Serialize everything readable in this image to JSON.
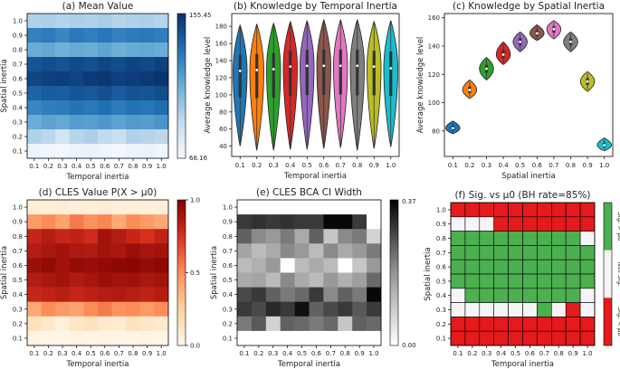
{
  "chart_data": [
    {
      "type": "heatmap",
      "title": "(a) Mean Value",
      "xlabel": "Temporal inertia",
      "ylabel": "Spatial inertia",
      "x_ticks": [
        "0.1",
        "0.2",
        "0.3",
        "0.4",
        "0.5",
        "0.6",
        "0.7",
        "0.8",
        "0.9",
        "1.0"
      ],
      "y_ticks": [
        "1.0",
        "0.9",
        "0.8",
        "0.7",
        "0.6",
        "0.5",
        "0.4",
        "0.3",
        "0.2",
        "0.1"
      ],
      "colorbar": {
        "min": 68.16,
        "max": 155.45,
        "min_label": "68.16",
        "max_label": "155.45",
        "colormap": "Blues"
      },
      "rows_top_to_bottom": [
        [
          95,
          96,
          94,
          96,
          95,
          97,
          94,
          95,
          96,
          94
        ],
        [
          128,
          130,
          126,
          131,
          129,
          132,
          128,
          130,
          131,
          129
        ],
        [
          112,
          114,
          110,
          113,
          112,
          115,
          111,
          113,
          114,
          112
        ],
        [
          143,
          146,
          144,
          147,
          145,
          148,
          146,
          149,
          147,
          150
        ],
        [
          148,
          150,
          151,
          149,
          152,
          153,
          150,
          151,
          152,
          154
        ],
        [
          138,
          141,
          140,
          143,
          142,
          145,
          141,
          144,
          143,
          146
        ],
        [
          126,
          129,
          130,
          133,
          131,
          134,
          130,
          133,
          132,
          135
        ],
        [
          112,
          116,
          114,
          118,
          117,
          120,
          116,
          119,
          118,
          121
        ],
        [
          95,
          92,
          84,
          93,
          96,
          91,
          88,
          95,
          94,
          92
        ],
        [
          73,
          72,
          71,
          73,
          74,
          72,
          71,
          73,
          74,
          72
        ]
      ]
    },
    {
      "type": "violin",
      "title": "(b) Knowledge by Temporal Inertia",
      "xlabel": "Temporal inertia",
      "ylabel": "Average knowledge level",
      "categories": [
        "0.1",
        "0.2",
        "0.3",
        "0.4",
        "0.5",
        "0.6",
        "0.7",
        "0.8",
        "0.9",
        "1.0"
      ],
      "ylim": [
        28,
        195
      ],
      "y_ticks": [
        40,
        60,
        80,
        100,
        120,
        140,
        160,
        180
      ],
      "series": [
        {
          "name": "0.1",
          "min": 40,
          "max": 182,
          "median": 128,
          "color": "#1f77b4"
        },
        {
          "name": "0.2",
          "min": 35,
          "max": 183,
          "median": 129,
          "color": "#ff7f0e"
        },
        {
          "name": "0.3",
          "min": 35,
          "max": 184,
          "median": 130,
          "color": "#2ca02c"
        },
        {
          "name": "0.4",
          "min": 36,
          "max": 186,
          "median": 133,
          "color": "#d62728"
        },
        {
          "name": "0.5",
          "min": 36,
          "max": 187,
          "median": 134,
          "color": "#9467bd"
        },
        {
          "name": "0.6",
          "min": 37,
          "max": 188,
          "median": 134,
          "color": "#8c564b"
        },
        {
          "name": "0.7",
          "min": 38,
          "max": 188,
          "median": 134,
          "color": "#e377c2"
        },
        {
          "name": "0.8",
          "min": 35,
          "max": 188,
          "median": 134,
          "color": "#7f7f7f"
        },
        {
          "name": "0.9",
          "min": 37,
          "max": 186,
          "median": 133,
          "color": "#bcbd22"
        },
        {
          "name": "1.0",
          "min": 39,
          "max": 187,
          "median": 131,
          "color": "#17becf"
        }
      ]
    },
    {
      "type": "violin",
      "title": "(c) Knowledge by Spatial Inertia",
      "xlabel": "Spatial inertia",
      "ylabel": "Average knowledge level",
      "categories": [
        "0.1",
        "0.2",
        "0.3",
        "0.4",
        "0.5",
        "0.6",
        "0.7",
        "0.8",
        "0.9",
        "1.0"
      ],
      "ylim": [
        62,
        163
      ],
      "y_ticks": [
        80,
        100,
        120,
        140,
        160
      ],
      "series": [
        {
          "name": "0.1",
          "min": 78,
          "max": 87,
          "median": 82,
          "color": "#1f77b4"
        },
        {
          "name": "0.2",
          "min": 103,
          "max": 116,
          "median": 109,
          "color": "#ff7f0e"
        },
        {
          "name": "0.3",
          "min": 116,
          "max": 132,
          "median": 124,
          "color": "#2ca02c"
        },
        {
          "name": "0.4",
          "min": 127,
          "max": 143,
          "median": 134,
          "color": "#d62728"
        },
        {
          "name": "0.5",
          "min": 136,
          "max": 150,
          "median": 143,
          "color": "#9467bd"
        },
        {
          "name": "0.6",
          "min": 144,
          "max": 155,
          "median": 149,
          "color": "#8c564b"
        },
        {
          "name": "0.7",
          "min": 145,
          "max": 158,
          "median": 152,
          "color": "#e377c2"
        },
        {
          "name": "0.8",
          "min": 136,
          "max": 150,
          "median": 143,
          "color": "#7f7f7f"
        },
        {
          "name": "0.9",
          "min": 108,
          "max": 122,
          "median": 115,
          "color": "#bcbd22"
        },
        {
          "name": "1.0",
          "min": 66,
          "max": 75,
          "median": 70,
          "color": "#17becf"
        }
      ]
    },
    {
      "type": "heatmap",
      "title": "(d) CLES Value P(X > μ0)",
      "xlabel": "Temporal inertia",
      "ylabel": "Spatial inertia",
      "x_ticks": [
        "0.1",
        "0.2",
        "0.3",
        "0.4",
        "0.5",
        "0.6",
        "0.7",
        "0.8",
        "0.9",
        "1.0"
      ],
      "y_ticks": [
        "1.0",
        "0.9",
        "0.8",
        "0.7",
        "0.6",
        "0.5",
        "0.4",
        "0.3",
        "0.2",
        "0.1"
      ],
      "colorbar": {
        "min": 0,
        "max": 1,
        "ticks": [
          "0.0",
          "0.5",
          "1.0"
        ],
        "colormap": "OrRd"
      },
      "rows_top_to_bottom": [
        [
          0.06,
          0.05,
          0.07,
          0.05,
          0.06,
          0.07,
          0.05,
          0.06,
          0.05,
          0.06
        ],
        [
          0.45,
          0.5,
          0.42,
          0.55,
          0.48,
          0.52,
          0.4,
          0.5,
          0.45,
          0.4
        ],
        [
          0.8,
          0.85,
          0.8,
          0.82,
          0.78,
          0.9,
          0.85,
          0.8,
          0.75,
          0.82
        ],
        [
          0.85,
          0.88,
          0.9,
          0.87,
          0.86,
          0.9,
          0.88,
          0.92,
          0.89,
          0.9
        ],
        [
          0.92,
          0.95,
          0.9,
          0.94,
          0.93,
          0.95,
          0.96,
          0.97,
          0.94,
          0.96
        ],
        [
          0.85,
          0.88,
          0.9,
          0.86,
          0.89,
          0.92,
          0.9,
          0.91,
          0.88,
          0.9
        ],
        [
          0.8,
          0.82,
          0.84,
          0.8,
          0.83,
          0.85,
          0.86,
          0.84,
          0.82,
          0.85
        ],
        [
          0.4,
          0.5,
          0.45,
          0.42,
          0.5,
          0.55,
          0.48,
          0.5,
          0.45,
          0.5
        ],
        [
          0.15,
          0.1,
          0.05,
          0.12,
          0.15,
          0.1,
          0.08,
          0.15,
          0.12,
          0.1
        ],
        [
          0.03,
          0.02,
          0.02,
          0.03,
          0.02,
          0.03,
          0.02,
          0.02,
          0.03,
          0.02
        ]
      ]
    },
    {
      "type": "heatmap",
      "title": "(e) CLES BCA CI Width",
      "xlabel": "Temporal inertia",
      "ylabel": "Spatial inertia",
      "x_ticks": [
        "0.1",
        "0.2",
        "0.3",
        "0.4",
        "0.5",
        "0.6",
        "0.7",
        "0.8",
        "0.9",
        "1.0"
      ],
      "y_ticks": [
        "1.0",
        "0.9",
        "0.8",
        "0.7",
        "0.6",
        "0.5",
        "0.4",
        "0.3",
        "0.2",
        "0.1"
      ],
      "colorbar": {
        "min": 0.0,
        "max": 0.37,
        "min_label": "0.00",
        "max_label": "0.37",
        "colormap": "Greys"
      },
      "rows_top_to_bottom": [
        [
          0.0,
          0.0,
          0.0,
          0.0,
          0.0,
          0.0,
          0.0,
          0.0,
          0.0,
          0.0
        ],
        [
          0.3,
          0.31,
          0.3,
          0.31,
          0.3,
          0.3,
          0.36,
          0.36,
          0.3,
          0.0
        ],
        [
          0.25,
          0.2,
          0.18,
          0.22,
          0.15,
          0.25,
          0.1,
          0.2,
          0.22,
          0.08
        ],
        [
          0.16,
          0.12,
          0.15,
          0.2,
          0.18,
          0.12,
          0.2,
          0.15,
          0.18,
          0.22
        ],
        [
          0.12,
          0.14,
          0.18,
          0.0,
          0.12,
          0.15,
          0.12,
          0.0,
          0.1,
          0.18
        ],
        [
          0.15,
          0.16,
          0.12,
          0.2,
          0.15,
          0.12,
          0.18,
          0.14,
          0.17,
          0.24
        ],
        [
          0.28,
          0.3,
          0.25,
          0.22,
          0.24,
          0.3,
          0.2,
          0.25,
          0.22,
          0.36
        ],
        [
          0.3,
          0.28,
          0.32,
          0.3,
          0.35,
          0.25,
          0.28,
          0.3,
          0.26,
          0.3
        ],
        [
          0.22,
          0.26,
          0.08,
          0.25,
          0.24,
          0.22,
          0.24,
          0.1,
          0.25,
          0.24
        ],
        [
          0.0,
          0.0,
          0.0,
          0.0,
          0.0,
          0.0,
          0.0,
          0.0,
          0.0,
          0.0
        ]
      ]
    },
    {
      "type": "heatmap",
      "title": "(f) Sig. vs μ0 (BH rate=85%)",
      "xlabel": "Temporal inertia",
      "ylabel": "Spatial inertia",
      "x_ticks": [
        "0.1",
        "0.2",
        "0.3",
        "0.4",
        "0.5",
        "0.6",
        "0.7",
        "0.8",
        "0.9",
        "1.0"
      ],
      "y_ticks": [
        "1.0",
        "0.9",
        "0.8",
        "0.7",
        "0.6",
        "0.5",
        "0.4",
        "0.3",
        "0.2",
        "0.1"
      ],
      "categories_legend": [
        {
          "code": 1,
          "label": "Sig. > μ0",
          "color": "#4caf50"
        },
        {
          "code": 0,
          "label": "Not Sig.",
          "color": "#f5f5f5"
        },
        {
          "code": -1,
          "label": "Sig. < μ0",
          "color": "#e41a1c"
        }
      ],
      "rows_top_to_bottom": [
        [
          -1,
          -1,
          -1,
          -1,
          -1,
          -1,
          -1,
          -1,
          -1,
          -1
        ],
        [
          0,
          0,
          0,
          -1,
          -1,
          -1,
          -1,
          -1,
          -1,
          -1
        ],
        [
          1,
          1,
          1,
          1,
          1,
          1,
          1,
          1,
          1,
          0
        ],
        [
          1,
          1,
          1,
          1,
          1,
          1,
          1,
          1,
          1,
          1
        ],
        [
          1,
          1,
          1,
          1,
          1,
          1,
          1,
          1,
          1,
          1
        ],
        [
          1,
          1,
          1,
          1,
          1,
          1,
          1,
          1,
          1,
          1
        ],
        [
          0,
          1,
          1,
          1,
          1,
          1,
          1,
          1,
          1,
          0
        ],
        [
          0,
          0,
          0,
          0,
          0,
          0,
          1,
          0,
          -1,
          0
        ],
        [
          -1,
          -1,
          -1,
          -1,
          -1,
          -1,
          -1,
          -1,
          -1,
          -1
        ],
        [
          -1,
          -1,
          -1,
          -1,
          -1,
          -1,
          -1,
          -1,
          -1,
          -1
        ]
      ]
    }
  ]
}
